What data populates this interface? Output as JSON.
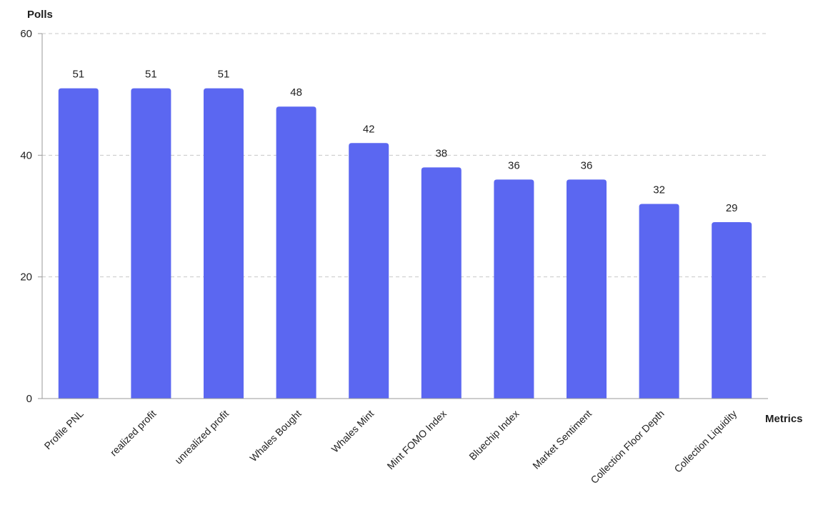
{
  "chart_data": {
    "type": "bar",
    "xlabel": "Metrics",
    "ylabel": "Polls",
    "ylim": [
      0,
      60
    ],
    "yticks": [
      0,
      20,
      40,
      60
    ],
    "grid": "horizontal dashed",
    "bar_color": "#5b67f1",
    "categories": [
      "Profile PNL",
      "realized profit",
      "unrealized profit",
      "Whales Bought",
      "Whales Mint",
      "Mint FOMO Index",
      "Bluechip Index",
      "Market Sentiment",
      "Collection Floor Depth",
      "Collection Liquidity"
    ],
    "values": [
      51,
      51,
      51,
      48,
      42,
      38,
      36,
      36,
      32,
      29
    ]
  }
}
